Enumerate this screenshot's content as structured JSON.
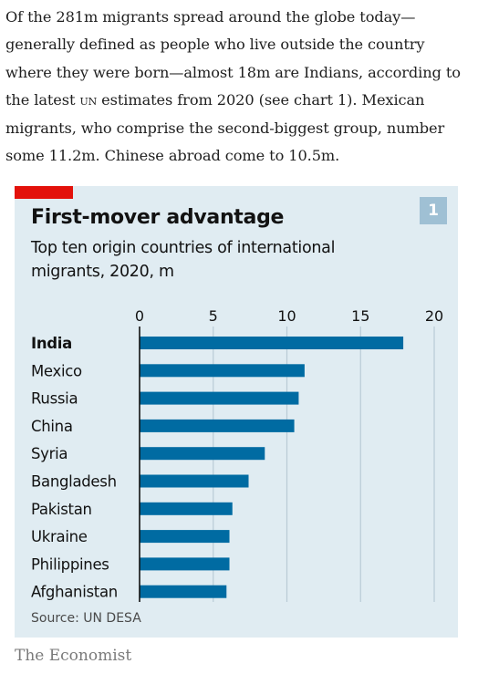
{
  "article": {
    "parts": [
      "Of the 281m migrants spread around the globe today—generally defined as people who live outside the country where they were born—almost 18m are Indians, according to the latest ",
      "UN",
      " estimates from 2020 (see chart 1). Mexican migrants, who comprise the second-biggest group, number some 11.2m. Chinese abroad come to 10.5m."
    ]
  },
  "chart": {
    "badge": "1",
    "title": "First-mover advantage",
    "subtitle": "Top ten origin countries of international migrants, 2020, m",
    "source": "Source: UN DESA"
  },
  "brand": "The Economist",
  "colors": {
    "accent_red": "#e3120b",
    "bar": "#006ba2",
    "card_bg": "#e0ecf2",
    "badge_bg": "#9fc0d4"
  },
  "chart_data": {
    "type": "bar",
    "orientation": "horizontal",
    "title": "First-mover advantage",
    "subtitle": "Top ten origin countries of international migrants, 2020, m",
    "categories": [
      "India",
      "Mexico",
      "Russia",
      "China",
      "Syria",
      "Bangladesh",
      "Pakistan",
      "Ukraine",
      "Philippines",
      "Afghanistan"
    ],
    "values": [
      17.9,
      11.2,
      10.8,
      10.5,
      8.5,
      7.4,
      6.3,
      6.1,
      6.1,
      5.9
    ],
    "xlim": [
      0,
      20
    ],
    "xticks": [
      0,
      5,
      10,
      15,
      20
    ],
    "grid": true,
    "highlight_category": "India",
    "source": "Source: UN DESA"
  }
}
